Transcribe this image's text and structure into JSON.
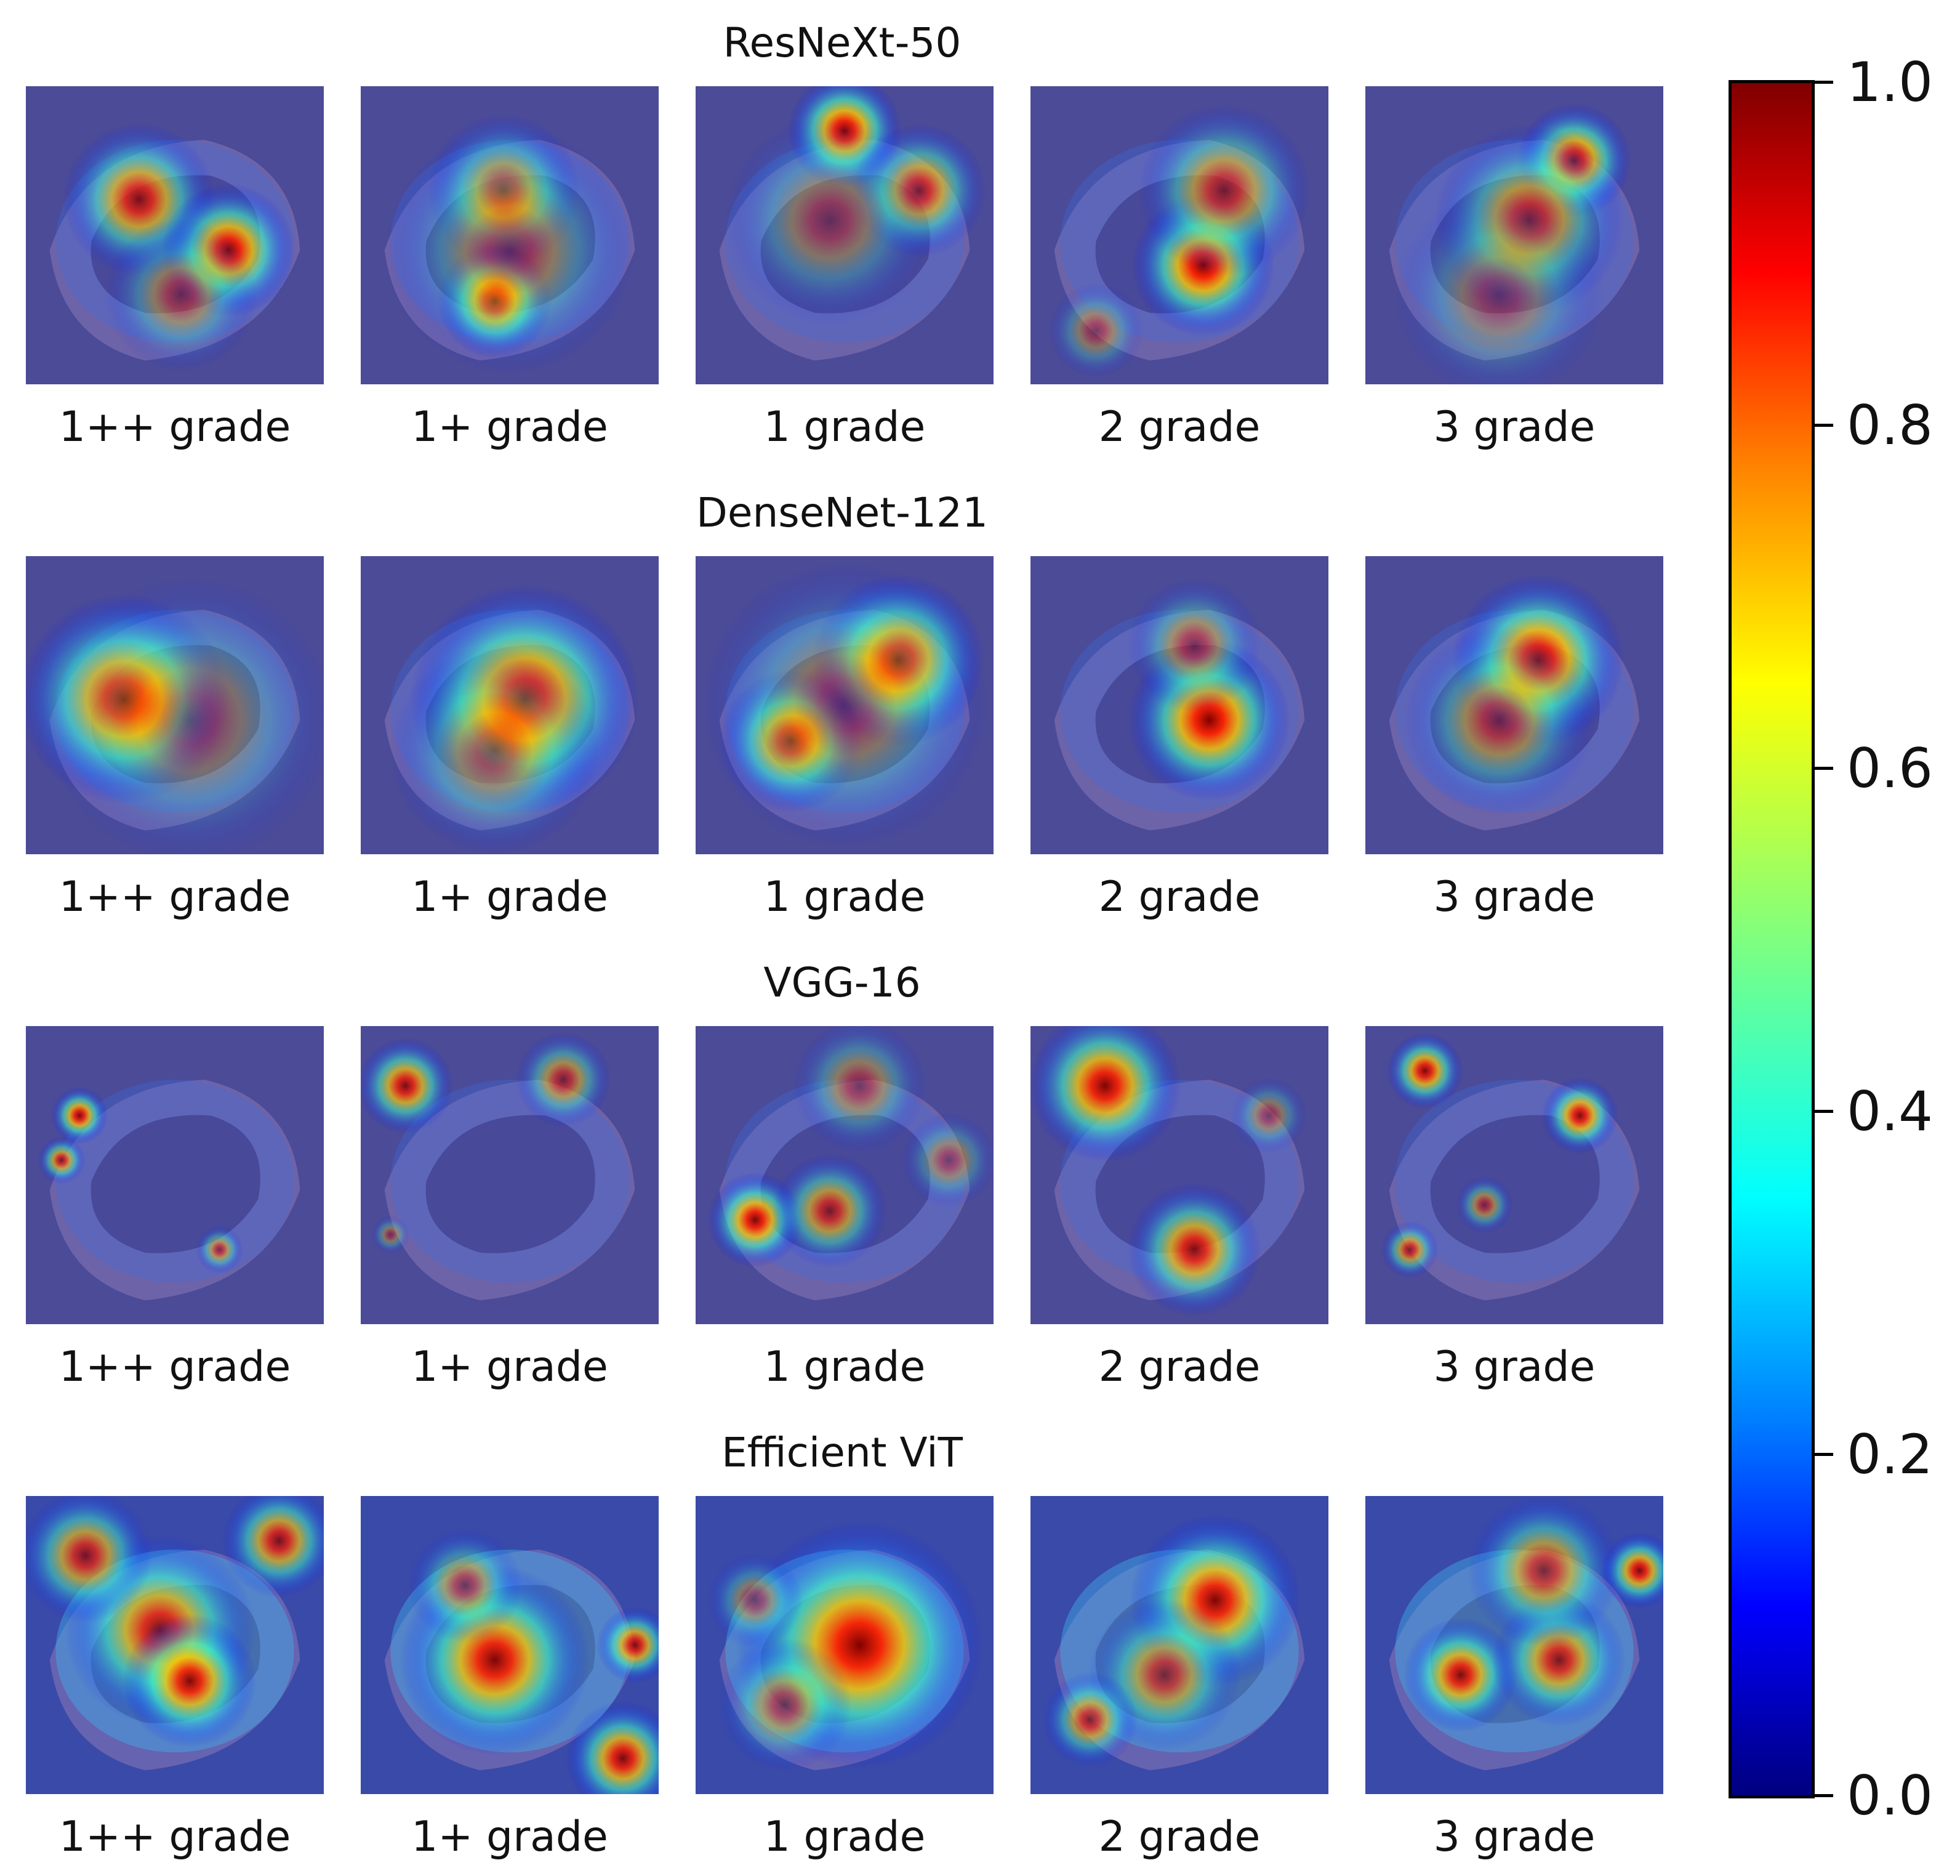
{
  "figure": {
    "panels": [
      {
        "model": "ResNeXt-50",
        "grades": [
          "1++ grade",
          "1+ grade",
          "1 grade",
          "2 grade",
          "3 grade"
        ]
      },
      {
        "model": "DenseNet-121",
        "grades": [
          "1++ grade",
          "1+ grade",
          "1 grade",
          "2 grade",
          "3 grade"
        ]
      },
      {
        "model": "VGG-16",
        "grades": [
          "1++ grade",
          "1+ grade",
          "1 grade",
          "2 grade",
          "3 grade"
        ]
      },
      {
        "model": "Efficient ViT",
        "grades": [
          "1++ grade",
          "1+ grade",
          "1 grade",
          "2 grade",
          "3 grade"
        ]
      }
    ]
  },
  "colorbar": {
    "ticks": [
      "1.0",
      "0.8",
      "0.6",
      "0.4",
      "0.2",
      "0.0"
    ],
    "colormap": [
      "#00007f",
      "#0000ff",
      "#007fff",
      "#00ffff",
      "#7fff7f",
      "#ffff00",
      "#ff7f00",
      "#ff0000",
      "#7f0000"
    ]
  }
}
